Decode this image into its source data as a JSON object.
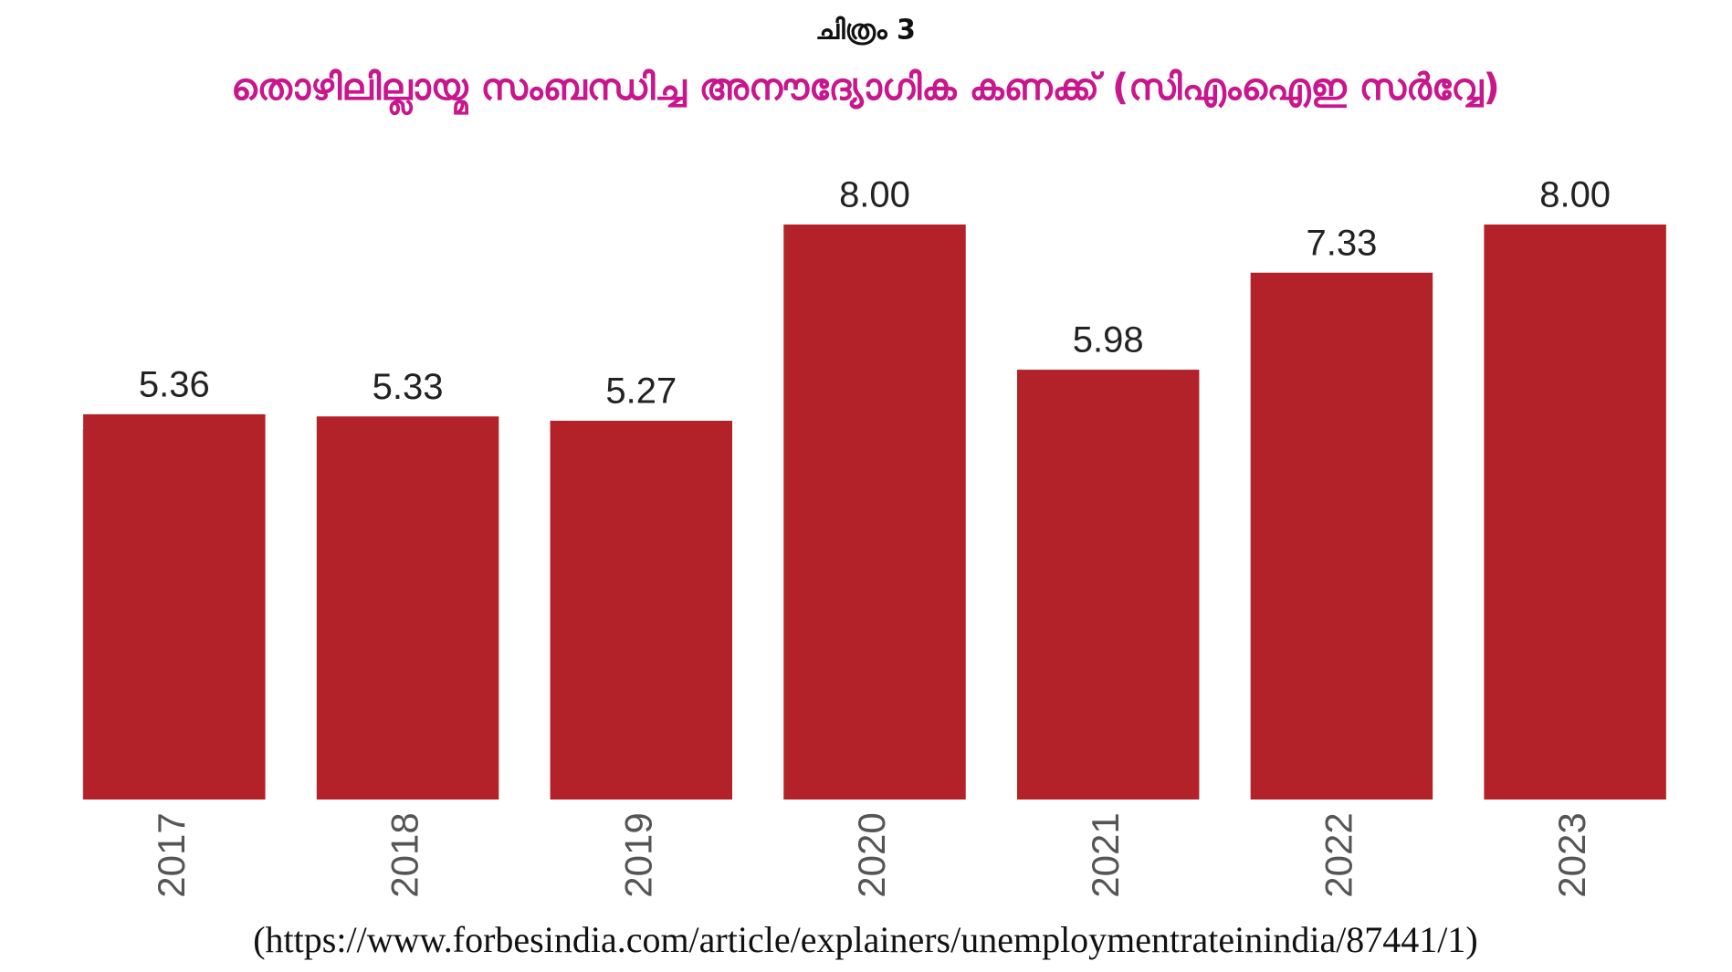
{
  "chart_data": {
    "type": "bar",
    "title": "ചിത്രം 3",
    "subtitle": "തൊഴിലില്ലായ്മ സംബന്ധിച്ച അനൗദ്യോഗിക കണക്ക് (സിഎംഐഇ സർവ്വേ)",
    "categories": [
      "2017",
      "2018",
      "2019",
      "2020",
      "2021",
      "2022",
      "2023"
    ],
    "values": [
      5.36,
      5.33,
      5.27,
      8,
      5.98,
      7.33,
      8
    ],
    "value_labels": [
      "5.36",
      "5.33",
      "5.27",
      "8.00",
      "5.98",
      "7.33",
      "8.00"
    ],
    "color": "#b22228",
    "ylim": [
      0,
      8
    ],
    "source": "(https://www.forbesindia.com/article/explainers/unemploymentrateinindia/87441/1)"
  }
}
